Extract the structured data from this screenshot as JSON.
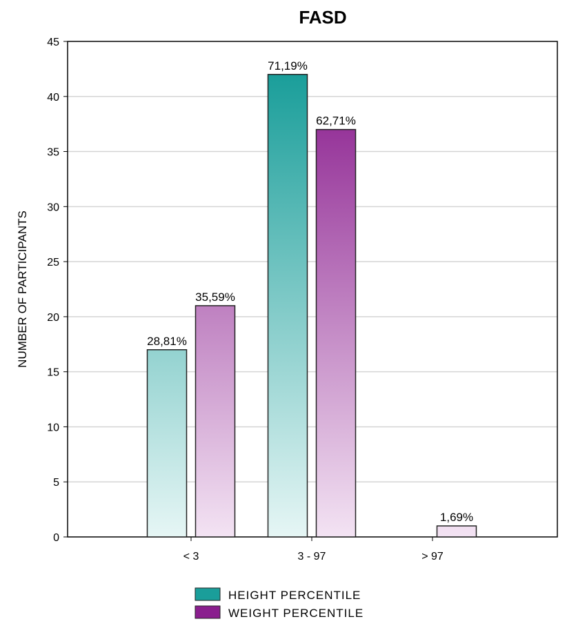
{
  "chart_data": {
    "type": "bar",
    "title": "FASD",
    "xlabel": "",
    "ylabel": "NUMBER OF PARTICIPANTS",
    "categories": [
      "< 3",
      "3 - 97",
      "> 97"
    ],
    "ylim": [
      0,
      45
    ],
    "yticks": [
      0,
      5,
      10,
      15,
      20,
      25,
      30,
      35,
      40,
      45
    ],
    "grid": true,
    "legend_position": "bottom",
    "series": [
      {
        "name": "HEIGHT PERCENTILE",
        "values": [
          17,
          42,
          0
        ],
        "labels": [
          "28,81%",
          "71,19%",
          ""
        ],
        "color": "#1a9e9a",
        "color_light": "#e6f6f5"
      },
      {
        "name": "WEIGHT PERCENTILE",
        "values": [
          21,
          37,
          1
        ],
        "labels": [
          "35,59%",
          "62,71%",
          "1,69%"
        ],
        "color": "#8a1e8e",
        "color_light": "#f3e3f3"
      }
    ]
  }
}
